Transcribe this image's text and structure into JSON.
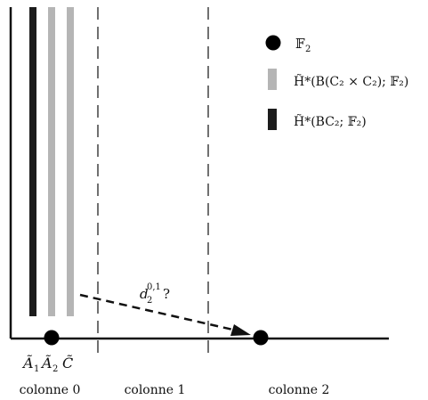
{
  "columns": [
    {
      "label": "colonne 0"
    },
    {
      "label": "colonne 1"
    },
    {
      "label": "colonne 2"
    }
  ],
  "column_base_labels": {
    "a": "Ã",
    "a_sub1": "1",
    "a_sub2": "2",
    "c": "C̃"
  },
  "arrow": {
    "label_base": "d",
    "label_sub": "2",
    "label_sup": "0,1",
    "label_suffix": "?"
  },
  "legend": {
    "items": [
      {
        "name": "legend-dot",
        "text_main": "𝔽",
        "text_sub": "2"
      },
      {
        "name": "legend-gray",
        "text_main": "H̃*(B(C₂ × C₂); 𝔽₂)"
      },
      {
        "name": "legend-black",
        "text_main": "H̃*(BC₂; 𝔽₂)"
      }
    ]
  },
  "colors": {
    "black_bar": "#1c1c1c",
    "gray_bar": "#b5b5b5",
    "axis": "#111111"
  }
}
